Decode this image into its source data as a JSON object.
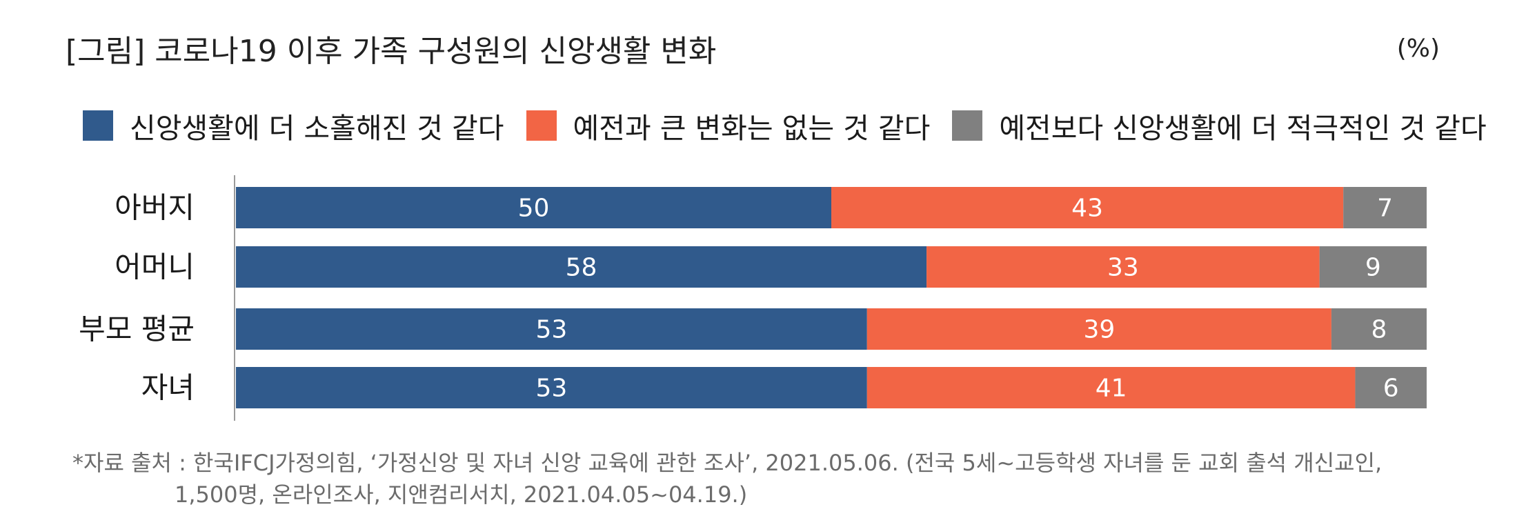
{
  "chart_data": {
    "type": "bar",
    "orientation": "horizontal",
    "stacked": true,
    "title": "[그림] 코로나19 이후 가족 구성원의 신앙생활 변화",
    "unit": "(%)",
    "categories": [
      "아버지",
      "어머니",
      "부모 평균",
      "자녀"
    ],
    "series": [
      {
        "name": "신앙생활에 더 소홀해진 것 같다",
        "color": "#305a8c",
        "values": [
          50,
          58,
          53,
          53
        ]
      },
      {
        "name": "예전과 큰 변화는 없는 것 같다",
        "color": "#f26545",
        "values": [
          43,
          33,
          39,
          41
        ]
      },
      {
        "name": "예전보다 신앙생활에 더 적극적인 것 같다",
        "color": "#808080",
        "values": [
          7,
          9,
          8,
          6
        ]
      }
    ],
    "xlim": [
      0,
      100
    ],
    "legend": "top",
    "grid": false
  },
  "source": {
    "line1": "*자료 출처 : 한국IFCJ가정의힘, ‘가정신앙 및 자녀 신앙 교육에 관한 조사’, 2021.05.06. (전국 5세~고등학생 자녀를 둔 교회 출석 개신교인,",
    "line2": "1,500명, 온라인조사, 지앤컴리서치, 2021.04.05~04.19.)"
  }
}
